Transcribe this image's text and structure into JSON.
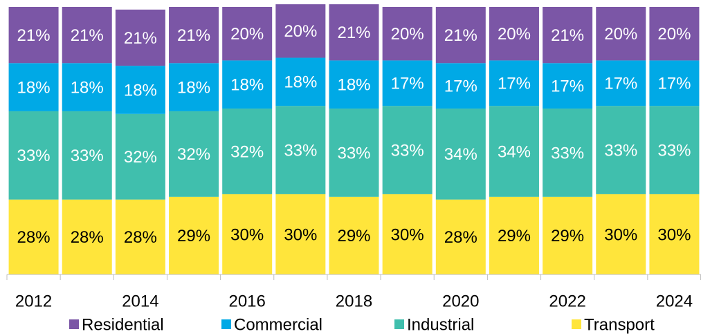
{
  "chart_data": {
    "type": "stacked_bar",
    "categories": [
      "2012",
      null,
      "2014",
      null,
      "2016",
      null,
      "2018",
      null,
      "2020",
      null,
      "2022",
      null,
      "2024"
    ],
    "ylim": [
      0,
      100
    ],
    "series": [
      {
        "name": "Residential",
        "color": "#7b56a6",
        "label_color": "#ffffff",
        "values": [
          21,
          21,
          21,
          21,
          20,
          20,
          21,
          20,
          21,
          20,
          21,
          20,
          20
        ],
        "value_labels": [
          "21%",
          "21%",
          "21%",
          "21%",
          "20%",
          "20%",
          "21%",
          "20%",
          "21%",
          "20%",
          "21%",
          "20%",
          "20%"
        ]
      },
      {
        "name": "Commercial",
        "color": "#00a9e6",
        "label_color": "#ffffff",
        "values": [
          18,
          18,
          18,
          18,
          18,
          18,
          18,
          17,
          17,
          17,
          17,
          17,
          17
        ],
        "value_labels": [
          "18%",
          "18%",
          "18%",
          "18%",
          "18%",
          "18%",
          "18%",
          "17%",
          "17%",
          "17%",
          "17%",
          "17%",
          "17%"
        ]
      },
      {
        "name": "Industrial",
        "color": "#40bfad",
        "label_color": "#ffffff",
        "values": [
          33,
          33,
          32,
          32,
          32,
          33,
          33,
          33,
          34,
          34,
          33,
          33,
          33
        ],
        "value_labels": [
          "33%",
          "33%",
          "32%",
          "32%",
          "32%",
          "33%",
          "33%",
          "33%",
          "34%",
          "34%",
          "33%",
          "33%",
          "33%"
        ]
      },
      {
        "name": "Transport",
        "color": "#ffe53b",
        "label_color": "#000000",
        "values": [
          28,
          28,
          28,
          29,
          30,
          30,
          29,
          30,
          28,
          29,
          29,
          30,
          30
        ],
        "value_labels": [
          "28%",
          "28%",
          "28%",
          "29%",
          "30%",
          "30%",
          "29%",
          "30%",
          "28%",
          "29%",
          "29%",
          "30%",
          "30%"
        ]
      }
    ]
  }
}
